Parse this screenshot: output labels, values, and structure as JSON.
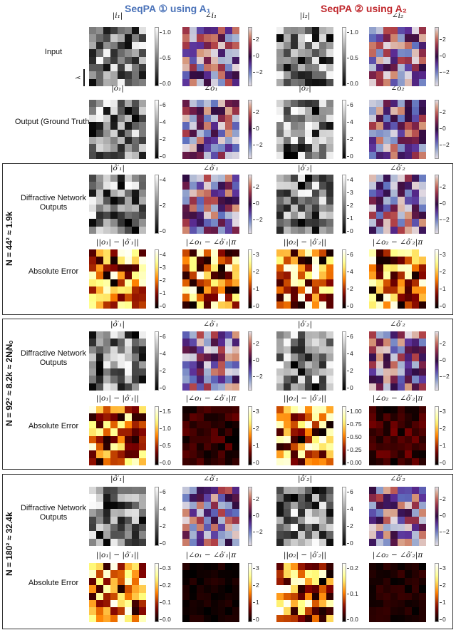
{
  "header": {
    "left": "SeqPA ① using A₁",
    "right": "SeqPA ② using A₂",
    "left_color": "#4a72b8",
    "right_color": "#c0282d"
  },
  "row_labels": {
    "input": "Input",
    "output": "Output (Ground Truth)",
    "diffractive": "Diffractive Network Outputs",
    "abs_error": "Absolute Error",
    "lambda": "λ"
  },
  "boxes": [
    {
      "label": "N = 44² ≈ 1.9k"
    },
    {
      "label": "N = 92² ≈ 8.2k ≈ 2NᵢNₒ"
    },
    {
      "label": "N = 180² ≈ 32.4k"
    }
  ],
  "chart_data": {
    "type": "heatmap",
    "grid_size": [
      8,
      8
    ],
    "columns": [
      "|i1| / |o1|",
      "∠i1 / ∠o1",
      "|i2| / |o2|",
      "∠i2 / ∠o2"
    ],
    "panels": [
      {
        "row": "Input",
        "title": "|i₁|",
        "cmap": "gray",
        "ticks": [
          "1.0",
          "0.5",
          "0.0"
        ],
        "vmax": 1.25
      },
      {
        "row": "Input",
        "title": "∠i₁",
        "cmap": "twilight",
        "ticks": [
          "2",
          "0",
          "−2"
        ]
      },
      {
        "row": "Input",
        "title": "|i₂|",
        "cmap": "gray",
        "ticks": [
          "1.0",
          "0.5",
          "0.0"
        ],
        "vmax": 1.25
      },
      {
        "row": "Input",
        "title": "∠i₂",
        "cmap": "twilight",
        "ticks": [
          "2",
          "0",
          "−2"
        ]
      },
      {
        "row": "Output (Ground Truth)",
        "title": "|o₁|",
        "cmap": "gray",
        "ticks": [
          "6",
          "4",
          "2",
          "0"
        ],
        "vmax": 7.5
      },
      {
        "row": "Output (Ground Truth)",
        "title": "∠o₁",
        "cmap": "twilight",
        "ticks": [
          "2",
          "0",
          "−2"
        ]
      },
      {
        "row": "Output (Ground Truth)",
        "title": "|o₂|",
        "cmap": "gray",
        "ticks": [
          "6",
          "4",
          "2",
          "0"
        ],
        "vmax": 7.5
      },
      {
        "row": "Output (Ground Truth)",
        "title": "∠o₂",
        "cmap": "twilight",
        "ticks": [
          "2",
          "0",
          "−2"
        ]
      },
      {
        "box": "N=44²",
        "row": "Diffractive Network Outputs",
        "title": "|ô′₁|",
        "cmap": "gray",
        "ticks": [
          "4",
          "2",
          "0"
        ]
      },
      {
        "box": "N=44²",
        "row": "Diffractive Network Outputs",
        "title": "∠ô′₁",
        "cmap": "twilight",
        "ticks": [
          "2",
          "0",
          "−2"
        ]
      },
      {
        "box": "N=44²",
        "row": "Diffractive Network Outputs",
        "title": "|ô′₂|",
        "cmap": "gray",
        "ticks": [
          "4",
          "3",
          "2",
          "1",
          "0"
        ]
      },
      {
        "box": "N=44²",
        "row": "Diffractive Network Outputs",
        "title": "∠ô′₂",
        "cmap": "twilight",
        "ticks": [
          "2",
          "0",
          "−2"
        ]
      },
      {
        "box": "N=44²",
        "row": "Absolute Error",
        "title": "||o₁| − |ô′₁||",
        "cmap": "afmhot",
        "ticks": [
          "4",
          "3",
          "2",
          "1",
          "0"
        ]
      },
      {
        "box": "N=44²",
        "row": "Absolute Error",
        "title": "|∠o₁ − ∠ô′₁|π",
        "cmap": "afmhot",
        "ticks": [
          "3",
          "2",
          "1",
          "0"
        ]
      },
      {
        "box": "N=44²",
        "row": "Absolute Error",
        "title": "||o₂| − |ô′₂||",
        "cmap": "afmhot",
        "ticks": [
          "6",
          "4",
          "2",
          "0"
        ]
      },
      {
        "box": "N=44²",
        "row": "Absolute Error",
        "title": "|∠o₂ − ∠ô′₂|π",
        "cmap": "afmhot",
        "ticks": [
          "3",
          "2",
          "1",
          "0"
        ]
      },
      {
        "box": "N=92²",
        "row": "Diffractive Network Outputs",
        "title": "|ô′₁|",
        "cmap": "gray",
        "ticks": [
          "6",
          "4",
          "2",
          "0"
        ]
      },
      {
        "box": "N=92²",
        "row": "Diffractive Network Outputs",
        "title": "∠ô′₁",
        "cmap": "twilight",
        "ticks": [
          "2",
          "0",
          "−2"
        ]
      },
      {
        "box": "N=92²",
        "row": "Diffractive Network Outputs",
        "title": "|ô′₂|",
        "cmap": "gray",
        "ticks": [
          "6",
          "4",
          "2",
          "0"
        ]
      },
      {
        "box": "N=92²",
        "row": "Diffractive Network Outputs",
        "title": "∠ô′₂",
        "cmap": "twilight",
        "ticks": [
          "2",
          "0",
          "−2"
        ]
      },
      {
        "box": "N=92²",
        "row": "Absolute Error",
        "title": "||o₁| − |ô′₁||",
        "cmap": "afmhot",
        "ticks": [
          "1.5",
          "1.0",
          "0.5",
          "0.0"
        ]
      },
      {
        "box": "N=92²",
        "row": "Absolute Error",
        "title": "|∠o₁ − ∠ô′₁|π",
        "cmap": "afmhot",
        "ticks": [
          "3",
          "2",
          "1",
          "0"
        ]
      },
      {
        "box": "N=92²",
        "row": "Absolute Error",
        "title": "||o₂| − |ô′₂||",
        "cmap": "afmhot",
        "ticks": [
          "1.00",
          "0.75",
          "0.50",
          "0.25",
          "0.00"
        ]
      },
      {
        "box": "N=92²",
        "row": "Absolute Error",
        "title": "|∠o₂ − ∠ô′₂|π",
        "cmap": "afmhot",
        "ticks": [
          "3",
          "2",
          "1",
          "0"
        ]
      },
      {
        "box": "N=180²",
        "row": "Diffractive Network Outputs",
        "title": "|ô′₁|",
        "cmap": "gray",
        "ticks": [
          "6",
          "4",
          "2",
          "0"
        ]
      },
      {
        "box": "N=180²",
        "row": "Diffractive Network Outputs",
        "title": "∠ô′₁",
        "cmap": "twilight",
        "ticks": [
          "2",
          "0",
          "−2"
        ]
      },
      {
        "box": "N=180²",
        "row": "Diffractive Network Outputs",
        "title": "|ô′₂|",
        "cmap": "gray",
        "ticks": [
          "6",
          "4",
          "2",
          "0"
        ]
      },
      {
        "box": "N=180²",
        "row": "Diffractive Network Outputs",
        "title": "∠ô′₂",
        "cmap": "twilight",
        "ticks": [
          "2",
          "0",
          "−2"
        ]
      },
      {
        "box": "N=180²",
        "row": "Absolute Error",
        "title": "||o₁| − |ô′₁||",
        "cmap": "afmhot",
        "ticks": [
          "0.3",
          "0.2",
          "0.1",
          "0.0"
        ]
      },
      {
        "box": "N=180²",
        "row": "Absolute Error",
        "title": "|∠o₁ − ∠ô′₁|π",
        "cmap": "afmhot",
        "ticks": [
          "3",
          "2",
          "1",
          "0"
        ]
      },
      {
        "box": "N=180²",
        "row": "Absolute Error",
        "title": "||o₂| − |ô′₂||",
        "cmap": "afmhot",
        "ticks": [
          "0.2",
          "0.1",
          "0.0"
        ]
      },
      {
        "box": "N=180²",
        "row": "Absolute Error",
        "title": "|∠o₂ − ∠ô′₂|π",
        "cmap": "afmhot",
        "ticks": [
          "3",
          "2",
          "1",
          "0"
        ]
      }
    ]
  }
}
